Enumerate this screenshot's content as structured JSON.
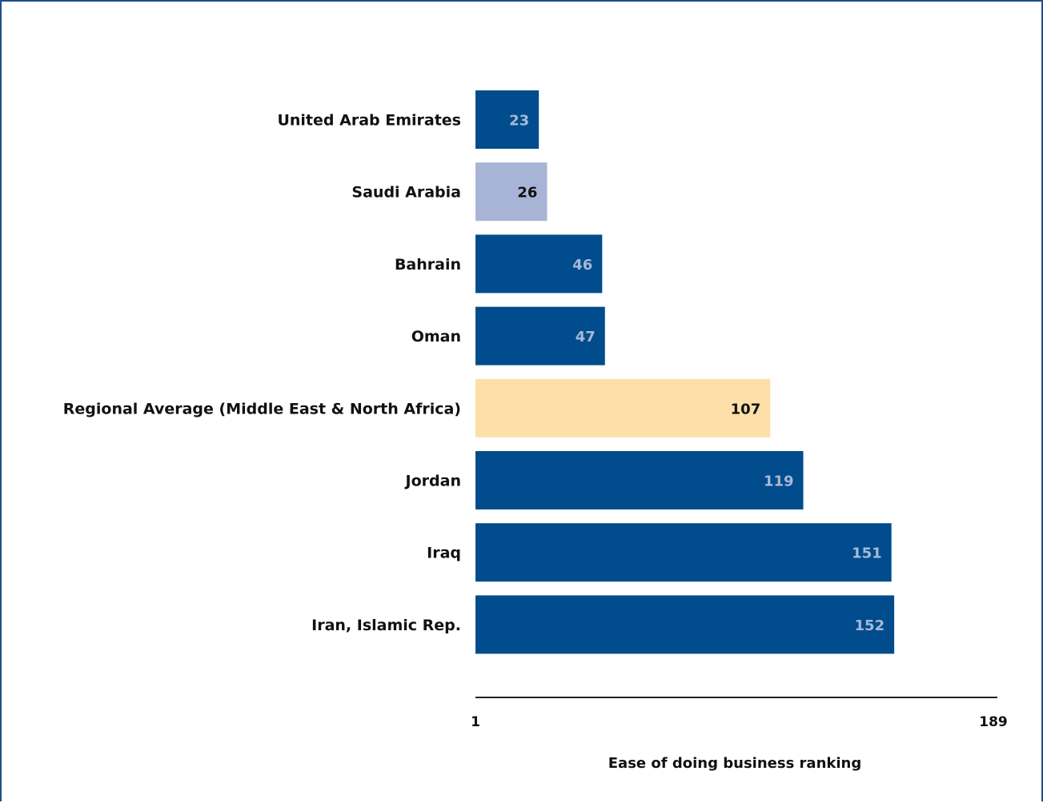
{
  "chart_data": {
    "type": "bar",
    "orientation": "horizontal",
    "categories": [
      "United Arab Emirates",
      "Saudi Arabia",
      "Bahrain",
      "Oman",
      "Regional Average (Middle East & North Africa)",
      "Jordan",
      "Iraq",
      "Iran, Islamic Rep."
    ],
    "values": [
      23,
      26,
      46,
      47,
      107,
      119,
      151,
      152
    ],
    "value_labels": [
      "23",
      "26",
      "46",
      "47",
      "107",
      "119",
      "151",
      "152"
    ],
    "bar_colors": [
      "#004c8c",
      "#a8b4d6",
      "#004c8c",
      "#004c8c",
      "#fddfa8",
      "#004c8c",
      "#004c8c",
      "#004c8c"
    ],
    "label_colors": [
      "#a8b8d8",
      "#111111",
      "#a8b8d8",
      "#a8b8d8",
      "#111111",
      "#a8b8d8",
      "#a8b8d8",
      "#a8b8d8"
    ],
    "xlim": [
      1,
      189
    ],
    "xticks": [
      "1",
      "189"
    ],
    "xlabel": "Ease of doing business ranking",
    "title": "",
    "grid": false,
    "legend": "none"
  },
  "colors": {
    "frame": "#1f4e8c",
    "axis": "#222222"
  }
}
